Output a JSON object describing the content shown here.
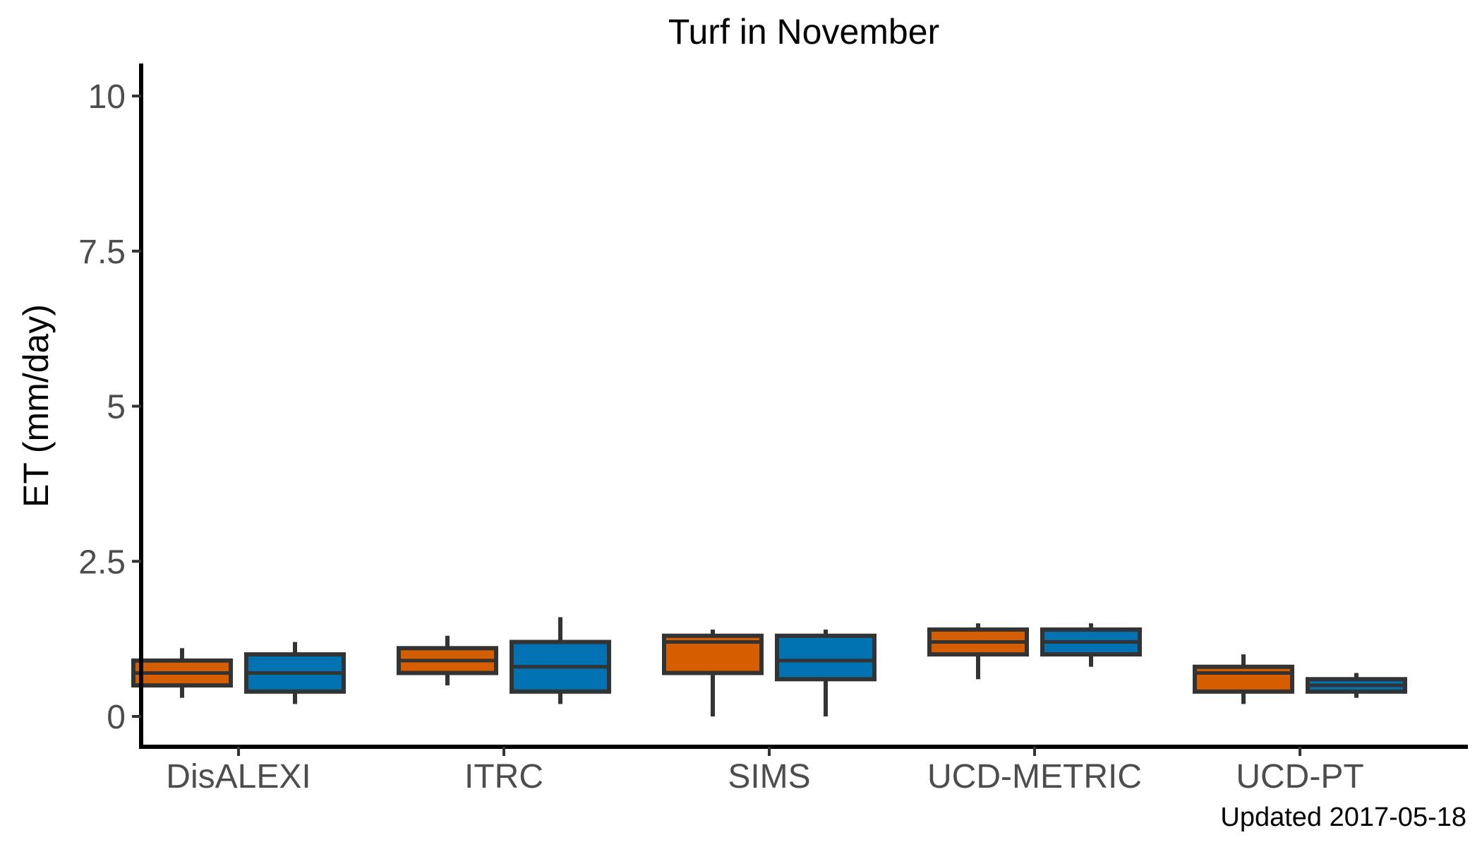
{
  "chart_data": {
    "type": "boxplot",
    "title": "Turf in November",
    "xlabel": "",
    "ylabel": "ET (mm/day)",
    "ylim": [
      -0.5,
      10.5
    ],
    "yticks": [
      0,
      2.5,
      5,
      7.5,
      10
    ],
    "ytick_labels": [
      "0",
      "2.5",
      "5",
      "7.5",
      "10"
    ],
    "categories": [
      "DisALEXI",
      "ITRC",
      "SIMS",
      "UCD-METRIC",
      "UCD-PT"
    ],
    "grid": false,
    "legend": "none",
    "series": [
      {
        "color": "#D55E00",
        "boxes": [
          {
            "min": 0.3,
            "q1": 0.5,
            "median": 0.7,
            "q3": 0.9,
            "max": 1.1
          },
          {
            "min": 0.5,
            "q1": 0.7,
            "median": 0.9,
            "q3": 1.1,
            "max": 1.3
          },
          {
            "min": 0.0,
            "q1": 0.7,
            "median": 1.2,
            "q3": 1.3,
            "max": 1.4
          },
          {
            "min": 0.6,
            "q1": 1.0,
            "median": 1.2,
            "q3": 1.4,
            "max": 1.5
          },
          {
            "min": 0.2,
            "q1": 0.4,
            "median": 0.7,
            "q3": 0.8,
            "max": 1.0
          }
        ]
      },
      {
        "color": "#0072B2",
        "boxes": [
          {
            "min": 0.2,
            "q1": 0.4,
            "median": 0.7,
            "q3": 1.0,
            "max": 1.2
          },
          {
            "min": 0.2,
            "q1": 0.4,
            "median": 0.8,
            "q3": 1.2,
            "max": 1.6
          },
          {
            "min": 0.0,
            "q1": 0.6,
            "median": 0.9,
            "q3": 1.3,
            "max": 1.4
          },
          {
            "min": 0.8,
            "q1": 1.0,
            "median": 1.2,
            "q3": 1.4,
            "max": 1.5
          },
          {
            "min": 0.3,
            "q1": 0.4,
            "median": 0.5,
            "q3": 0.6,
            "max": 0.7
          }
        ]
      }
    ],
    "caption": "Updated  2017-05-18"
  },
  "colors": {
    "axis": "#000000",
    "box_outline": "#333333",
    "tick_text": "#4d4d4d"
  }
}
